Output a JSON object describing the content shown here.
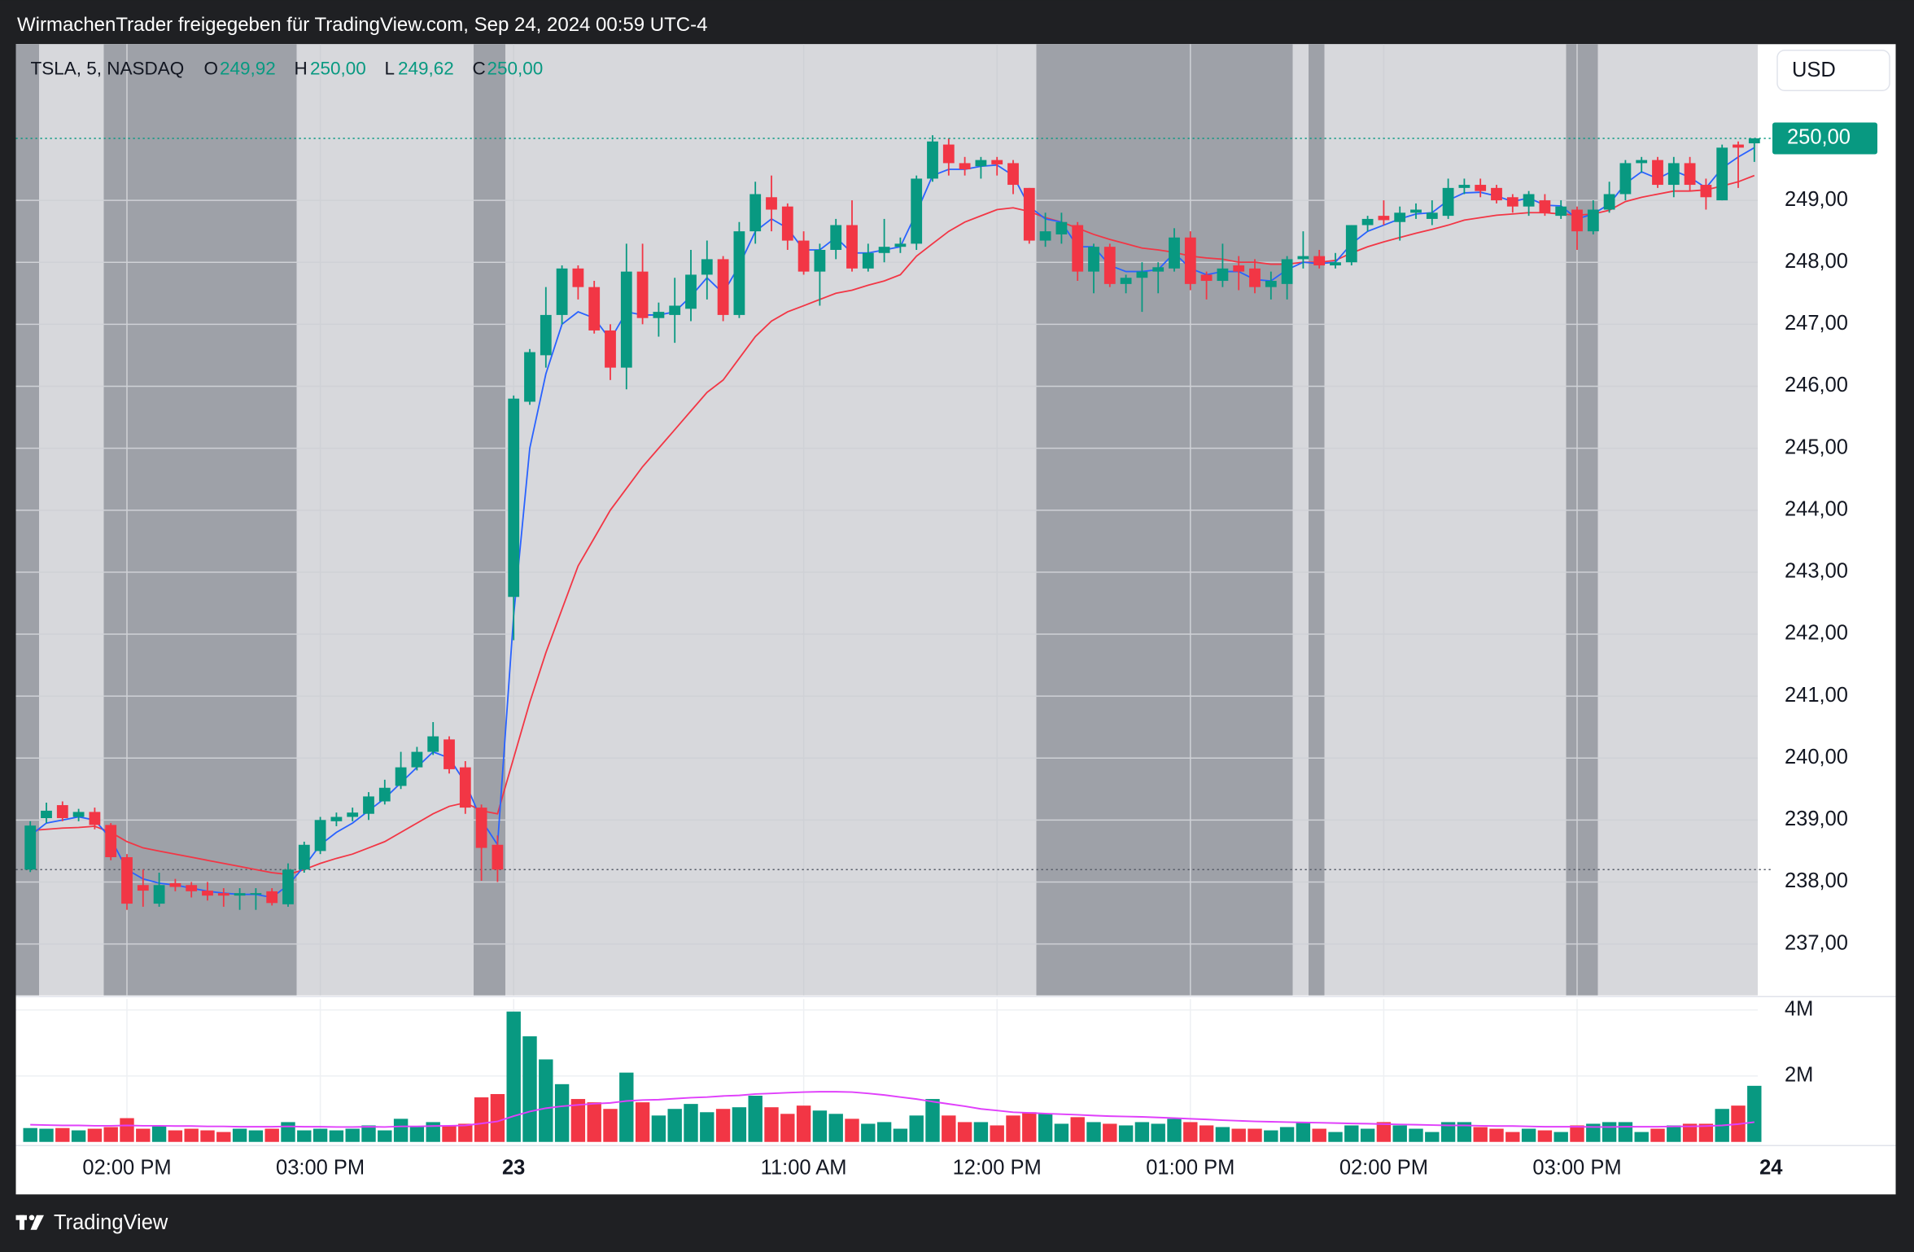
{
  "caption": "WirmachenTrader freigegeben für TradingView.com, Sep 24, 2024 00:59 UTC-4",
  "footer": "TradingView",
  "chart_data": {
    "type": "candlestick",
    "legend": {
      "symbol": "TSLA, 5, NASDAQ",
      "o_label": "O",
      "open": "249,92",
      "h_label": "H",
      "high": "250,00",
      "l_label": "L",
      "low": "249,62",
      "c_label": "C",
      "close": "250,00"
    },
    "currency": "USD",
    "up_color": "#089981",
    "down_color": "#f23645",
    "categories": [
      null,
      null,
      null,
      null,
      null,
      null,
      "02:00 PM",
      null,
      null,
      null,
      null,
      null,
      null,
      null,
      null,
      null,
      null,
      null,
      "03:00 PM",
      null,
      null,
      null,
      null,
      null,
      null,
      null,
      null,
      null,
      null,
      null,
      "23",
      null,
      null,
      null,
      null,
      null,
      null,
      null,
      null,
      null,
      null,
      null,
      null,
      null,
      null,
      null,
      null,
      null,
      "11:00 AM",
      null,
      null,
      null,
      null,
      null,
      null,
      null,
      null,
      null,
      null,
      null,
      "12:00 PM",
      null,
      null,
      null,
      null,
      null,
      null,
      null,
      null,
      null,
      null,
      null,
      "01:00 PM",
      null,
      null,
      null,
      null,
      null,
      null,
      null,
      null,
      null,
      null,
      null,
      "02:00 PM",
      null,
      null,
      null,
      null,
      null,
      null,
      null,
      null,
      null,
      null,
      null,
      "03:00 PM",
      null,
      null,
      null,
      null,
      null,
      null,
      null,
      null,
      null,
      null,
      null
    ],
    "next_label": "24",
    "open": [
      238.2,
      239.03,
      239.24,
      239.05,
      239.13,
      238.92,
      238.4,
      237.95,
      237.65,
      237.98,
      237.95,
      237.86,
      237.82,
      237.78,
      237.8,
      237.85,
      237.64,
      238.2,
      238.5,
      238.98,
      239.05,
      239.1,
      239.3,
      239.55,
      239.85,
      240.1,
      240.3,
      239.85,
      239.2,
      238.6,
      242.6,
      245.75,
      246.5,
      247.15,
      247.9,
      247.6,
      246.9,
      246.3,
      247.85,
      247.1,
      247.15,
      247.25,
      247.8,
      248.05,
      247.15,
      248.5,
      249.05,
      248.9,
      248.35,
      247.85,
      248.2,
      248.6,
      247.9,
      248.15,
      248.25,
      248.3,
      249.35,
      249.9,
      249.6,
      249.55,
      249.65,
      249.6,
      249.2,
      248.35,
      248.45,
      248.6,
      247.85,
      248.25,
      247.65,
      247.75,
      247.85,
      247.9,
      248.4,
      247.8,
      247.7,
      247.95,
      247.9,
      247.6,
      247.65,
      248.05,
      248.1,
      247.95,
      248.0,
      248.6,
      248.75,
      248.65,
      248.8,
      248.7,
      248.75,
      249.2,
      249.25,
      249.2,
      249.05,
      248.9,
      249.0,
      248.75,
      248.85,
      248.5,
      248.85,
      249.1,
      249.6,
      249.65,
      249.25,
      249.6,
      249.25,
      249.0,
      249.9,
      249.92
    ],
    "high": [
      238.98,
      239.28,
      239.3,
      239.18,
      239.2,
      238.95,
      238.45,
      238.2,
      238.15,
      238.05,
      238.0,
      238.0,
      237.9,
      237.9,
      237.9,
      237.9,
      238.3,
      238.65,
      239.05,
      239.12,
      239.2,
      239.45,
      239.65,
      240.1,
      240.18,
      240.58,
      240.35,
      239.95,
      239.25,
      238.75,
      245.85,
      246.6,
      247.6,
      247.95,
      247.95,
      247.7,
      247.0,
      248.3,
      248.3,
      247.35,
      247.75,
      248.2,
      248.35,
      248.1,
      248.65,
      249.3,
      249.4,
      248.95,
      248.5,
      248.3,
      248.7,
      249.0,
      248.3,
      248.7,
      248.4,
      249.4,
      250.05,
      250.0,
      249.7,
      249.7,
      249.7,
      249.65,
      249.2,
      248.8,
      248.8,
      248.65,
      248.3,
      248.3,
      247.8,
      248.0,
      248.0,
      248.55,
      248.5,
      247.85,
      248.3,
      248.1,
      248.05,
      247.85,
      248.1,
      248.5,
      248.2,
      248.15,
      248.6,
      248.75,
      249.0,
      248.9,
      248.95,
      249.0,
      249.35,
      249.35,
      249.35,
      249.25,
      249.1,
      249.15,
      249.1,
      249.0,
      248.9,
      249.0,
      249.3,
      249.65,
      249.7,
      249.7,
      249.7,
      249.7,
      249.35,
      249.9,
      249.95,
      250.0
    ],
    "low": [
      238.16,
      238.95,
      238.98,
      238.98,
      238.85,
      238.35,
      237.55,
      237.6,
      237.6,
      237.85,
      237.75,
      237.7,
      237.6,
      237.55,
      237.55,
      237.62,
      237.6,
      238.15,
      238.45,
      238.9,
      238.98,
      239.0,
      239.25,
      239.5,
      239.8,
      240.05,
      239.75,
      239.1,
      238.02,
      238.0,
      241.9,
      245.7,
      246.3,
      247.0,
      247.4,
      246.85,
      246.1,
      245.95,
      247.0,
      246.8,
      246.7,
      247.05,
      247.4,
      247.05,
      247.1,
      248.3,
      248.5,
      248.2,
      247.8,
      247.3,
      248.05,
      247.85,
      247.85,
      248.0,
      248.15,
      248.2,
      249.3,
      249.4,
      249.4,
      249.35,
      249.4,
      249.1,
      248.3,
      248.25,
      248.3,
      247.7,
      247.5,
      247.6,
      247.5,
      247.2,
      247.5,
      247.85,
      247.55,
      247.4,
      247.6,
      247.55,
      247.5,
      247.4,
      247.4,
      247.9,
      247.9,
      247.9,
      247.95,
      248.5,
      248.6,
      248.35,
      248.7,
      248.6,
      248.7,
      249.1,
      249.05,
      248.95,
      248.8,
      248.75,
      248.75,
      248.7,
      248.2,
      248.45,
      248.8,
      249.0,
      249.45,
      249.2,
      249.05,
      249.15,
      248.85,
      249.0,
      249.2,
      249.62
    ],
    "close": [
      238.91,
      239.15,
      239.03,
      239.13,
      238.92,
      238.4,
      237.65,
      237.86,
      237.95,
      237.92,
      237.85,
      237.78,
      237.78,
      237.82,
      237.82,
      237.66,
      238.2,
      238.6,
      239.0,
      239.05,
      239.12,
      239.38,
      239.52,
      239.85,
      240.1,
      240.35,
      239.82,
      239.2,
      238.55,
      238.2,
      245.8,
      246.55,
      247.15,
      247.9,
      247.6,
      246.9,
      246.3,
      247.85,
      247.1,
      247.2,
      247.3,
      247.8,
      248.05,
      247.15,
      248.5,
      249.1,
      248.85,
      248.35,
      247.85,
      248.2,
      248.6,
      247.9,
      248.15,
      248.25,
      248.3,
      249.35,
      249.95,
      249.6,
      249.5,
      249.65,
      249.58,
      249.25,
      248.35,
      248.5,
      248.65,
      247.85,
      248.25,
      247.65,
      247.75,
      247.85,
      247.92,
      248.4,
      247.65,
      247.7,
      247.9,
      247.85,
      247.6,
      247.7,
      248.05,
      248.1,
      247.95,
      248.0,
      248.6,
      248.7,
      248.68,
      248.8,
      248.85,
      248.8,
      249.2,
      249.25,
      249.15,
      249.0,
      248.9,
      249.1,
      248.8,
      248.9,
      248.5,
      248.85,
      249.1,
      249.6,
      249.65,
      249.25,
      249.6,
      249.25,
      249.05,
      249.85,
      249.85,
      250.0
    ],
    "overlays": [
      {
        "color": "#f23645",
        "values": [
          238.83,
          238.85,
          238.87,
          238.88,
          238.9,
          238.8,
          238.65,
          238.55,
          238.5,
          238.45,
          238.4,
          238.35,
          238.3,
          238.25,
          238.2,
          238.15,
          238.12,
          238.2,
          238.3,
          238.38,
          238.45,
          238.55,
          238.65,
          238.8,
          238.95,
          239.1,
          239.22,
          239.28,
          239.15,
          239.1,
          240.0,
          240.9,
          241.7,
          242.4,
          243.1,
          243.55,
          244.0,
          244.35,
          244.7,
          245.0,
          245.3,
          245.6,
          245.9,
          246.1,
          246.45,
          246.8,
          247.05,
          247.2,
          247.3,
          247.4,
          247.5,
          247.55,
          247.63,
          247.7,
          247.8,
          248.1,
          248.3,
          248.5,
          248.65,
          248.75,
          248.85,
          248.88,
          248.82,
          248.72,
          248.65,
          248.55,
          248.45,
          248.37,
          248.3,
          248.23,
          248.2,
          248.16,
          248.1,
          248.07,
          248.05,
          248.0,
          248.0,
          247.97,
          247.97,
          248.0,
          248.0,
          248.03,
          248.15,
          248.25,
          248.33,
          248.4,
          248.47,
          248.53,
          248.6,
          248.68,
          248.72,
          248.76,
          248.78,
          248.8,
          248.8,
          248.78,
          248.76,
          248.78,
          248.84,
          248.98,
          249.05,
          249.1,
          249.15,
          249.15,
          249.17,
          249.23,
          249.3,
          249.4
        ]
      },
      {
        "color": "#2962ff",
        "values": [
          238.75,
          238.95,
          239.0,
          239.05,
          239.0,
          238.7,
          238.2,
          238.05,
          237.98,
          237.95,
          237.9,
          237.85,
          237.82,
          237.8,
          237.8,
          237.75,
          237.95,
          238.25,
          238.6,
          238.8,
          238.95,
          239.15,
          239.35,
          239.6,
          239.85,
          240.1,
          240.0,
          239.6,
          239.0,
          238.6,
          242.3,
          245.0,
          246.2,
          247.0,
          247.2,
          247.1,
          246.75,
          247.2,
          247.15,
          247.15,
          247.2,
          247.45,
          247.75,
          247.5,
          247.95,
          248.5,
          248.7,
          248.55,
          248.2,
          248.2,
          248.4,
          248.15,
          248.15,
          248.2,
          248.25,
          248.8,
          249.4,
          249.5,
          249.5,
          249.55,
          249.57,
          249.4,
          248.9,
          248.7,
          248.65,
          248.25,
          248.25,
          247.95,
          247.85,
          247.85,
          247.88,
          248.15,
          247.9,
          247.8,
          247.85,
          247.85,
          247.72,
          247.7,
          247.88,
          248.0,
          247.98,
          248.0,
          248.3,
          248.5,
          248.6,
          248.7,
          248.78,
          248.8,
          249.0,
          249.12,
          249.13,
          249.07,
          248.98,
          249.04,
          248.92,
          248.91,
          248.7,
          248.78,
          248.94,
          249.27,
          249.46,
          249.35,
          249.48,
          249.37,
          249.2,
          249.52,
          249.7,
          249.85
        ]
      }
    ],
    "ylim": [
      236.17,
      251.52
    ],
    "yticks": [
      {
        "value": 237,
        "label": "237,00"
      },
      {
        "value": 238,
        "label": "238,00"
      },
      {
        "value": 239,
        "label": "239,00"
      },
      {
        "value": 240,
        "label": "240,00"
      },
      {
        "value": 241,
        "label": "241,00"
      },
      {
        "value": 242,
        "label": "242,00"
      },
      {
        "value": 243,
        "label": "243,00"
      },
      {
        "value": 244,
        "label": "244,00"
      },
      {
        "value": 245,
        "label": "245,00"
      },
      {
        "value": 246,
        "label": "246,00"
      },
      {
        "value": 247,
        "label": "247,00"
      },
      {
        "value": 248,
        "label": "248,00"
      },
      {
        "value": 249,
        "label": "249,00"
      }
    ],
    "last_price": {
      "value": 250,
      "label": "250,00"
    },
    "prev_close": 238.2,
    "grid": true,
    "volume": {
      "type": "bar",
      "values": [
        0.42,
        0.4,
        0.42,
        0.35,
        0.4,
        0.45,
        0.72,
        0.4,
        0.5,
        0.35,
        0.4,
        0.35,
        0.3,
        0.4,
        0.35,
        0.4,
        0.6,
        0.35,
        0.4,
        0.35,
        0.4,
        0.5,
        0.35,
        0.7,
        0.45,
        0.6,
        0.5,
        0.55,
        1.35,
        1.45,
        3.95,
        3.2,
        2.5,
        1.75,
        1.3,
        1.2,
        1.0,
        2.1,
        1.2,
        0.8,
        1.0,
        1.15,
        0.9,
        1.0,
        1.05,
        1.4,
        1.05,
        0.85,
        1.1,
        0.95,
        0.85,
        0.7,
        0.55,
        0.6,
        0.4,
        0.8,
        1.3,
        0.8,
        0.6,
        0.6,
        0.5,
        0.8,
        0.9,
        0.85,
        0.55,
        0.75,
        0.6,
        0.55,
        0.5,
        0.6,
        0.55,
        0.7,
        0.6,
        0.5,
        0.45,
        0.4,
        0.4,
        0.35,
        0.45,
        0.6,
        0.4,
        0.3,
        0.5,
        0.4,
        0.6,
        0.5,
        0.4,
        0.3,
        0.6,
        0.6,
        0.45,
        0.4,
        0.3,
        0.4,
        0.35,
        0.3,
        0.5,
        0.55,
        0.6,
        0.6,
        0.3,
        0.4,
        0.5,
        0.55,
        0.55,
        1.0,
        1.1,
        1.7
      ],
      "ma": {
        "color": "#e040fb",
        "values": [
          0.52,
          0.51,
          0.5,
          0.5,
          0.49,
          0.49,
          0.5,
          0.49,
          0.49,
          0.48,
          0.48,
          0.47,
          0.47,
          0.46,
          0.46,
          0.46,
          0.47,
          0.46,
          0.46,
          0.45,
          0.45,
          0.46,
          0.45,
          0.47,
          0.47,
          0.48,
          0.49,
          0.5,
          0.56,
          0.62,
          0.78,
          0.92,
          1.02,
          1.08,
          1.12,
          1.16,
          1.18,
          1.24,
          1.27,
          1.28,
          1.31,
          1.34,
          1.36,
          1.39,
          1.41,
          1.45,
          1.47,
          1.49,
          1.51,
          1.52,
          1.52,
          1.51,
          1.47,
          1.42,
          1.36,
          1.3,
          1.22,
          1.15,
          1.08,
          1.0,
          0.95,
          0.9,
          0.88,
          0.86,
          0.84,
          0.82,
          0.8,
          0.78,
          0.77,
          0.76,
          0.74,
          0.72,
          0.7,
          0.68,
          0.66,
          0.64,
          0.62,
          0.61,
          0.6,
          0.59,
          0.58,
          0.57,
          0.56,
          0.55,
          0.54,
          0.53,
          0.52,
          0.51,
          0.5,
          0.5,
          0.49,
          0.48,
          0.48,
          0.47,
          0.46,
          0.46,
          0.46,
          0.45,
          0.45,
          0.46,
          0.46,
          0.46,
          0.47,
          0.47,
          0.48,
          0.5,
          0.54,
          0.6
        ]
      },
      "ylim": [
        0,
        4.33
      ],
      "yticks": [
        {
          "value": 2,
          "label": "2M"
        },
        {
          "value": 4,
          "label": "4M"
        }
      ]
    }
  }
}
